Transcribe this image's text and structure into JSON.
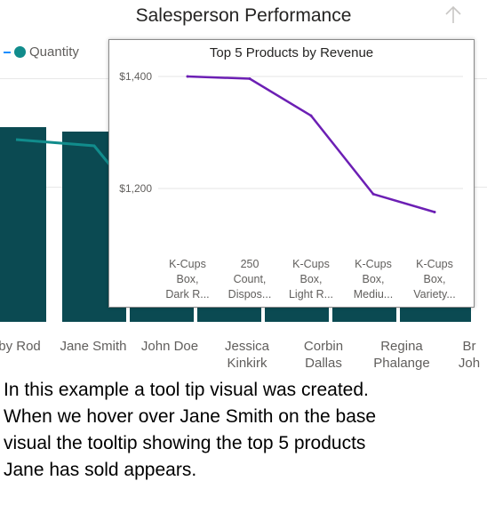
{
  "report": {
    "title": "Salesperson Performance",
    "legend": {
      "series": "Quantity",
      "line_color": "#118c8c"
    }
  },
  "base_chart": {
    "type": "bar",
    "bar_color": "#0b4a52",
    "categories": [
      "Ruby Rod",
      "Jane Smith",
      "John Doe",
      "Jessica Kinkirk",
      "Corbin Dallas",
      "Regina Phalange",
      "Br Joh"
    ],
    "category_labels": [
      [
        "by Rod"
      ],
      [
        "Jane Smith"
      ],
      [
        "John Doe"
      ],
      [
        "Jessica",
        "Kinkirk"
      ],
      [
        "Corbin",
        "Dallas"
      ],
      [
        "Regina",
        "Phalange"
      ],
      [
        "Br",
        "Joh"
      ]
    ]
  },
  "tooltip": {
    "title": "Top 5 Products by Revenue",
    "chart_data": {
      "type": "line",
      "line_color": "#6c1fb4",
      "categories": [
        "K-Cups Box, Dark R...",
        "250 Count, Dispos...",
        "K-Cups Box, Light R...",
        "K-Cups Box, Mediu...",
        "K-Cups Box, Variety..."
      ],
      "category_lines": [
        [
          "K-Cups",
          "Box,",
          "Dark R..."
        ],
        [
          "250",
          "Count,",
          "Dispos..."
        ],
        [
          "K-Cups",
          "Box,",
          "Light R..."
        ],
        [
          "K-Cups",
          "Box,",
          "Mediu..."
        ],
        [
          "K-Cups",
          "Box,",
          "Variety..."
        ]
      ],
      "values": [
        1400,
        1396,
        1330,
        1190,
        1158
      ],
      "ylim": [
        1080,
        1420
      ],
      "yticks": [
        1200,
        1400
      ],
      "ytick_labels": [
        "$1,200",
        "$1,400"
      ],
      "grid": true
    }
  },
  "caption": {
    "lines": [
      "In this example a tool tip visual was created.",
      "When we hover over Jane Smith on the base",
      "visual the tooltip showing the top 5 products",
      "Jane has sold appears."
    ]
  }
}
